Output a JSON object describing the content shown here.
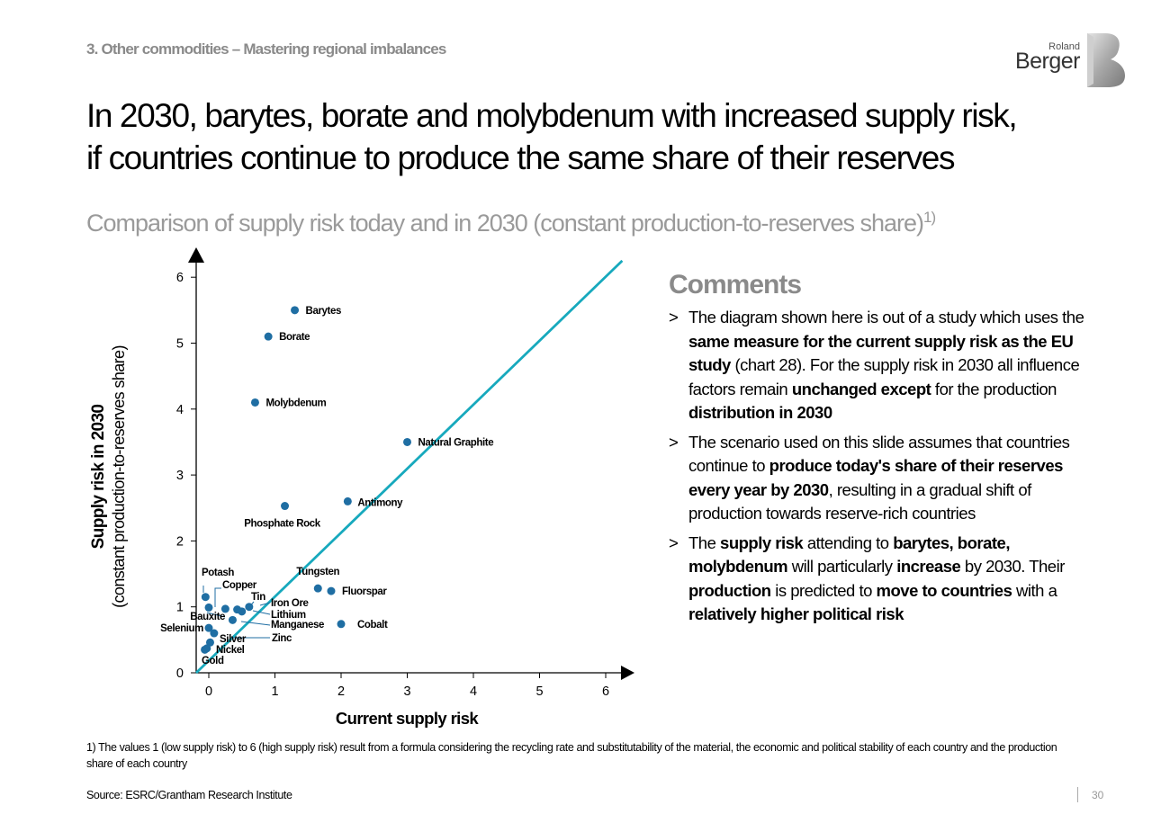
{
  "header": {
    "section": "3. Other commodities – Mastering regional imbalances",
    "logo_line1": "Roland",
    "logo_line2": "Berger"
  },
  "title_line1": "In 2030, barytes, borate and molybdenum with increased supply risk,",
  "title_line2": "if countries continue to produce the same share of their reserves",
  "subtitle": "Comparison of supply risk today and in 2030 (constant production-to-reserves share)",
  "subtitle_sup": "1)",
  "chart_data": {
    "type": "scatter",
    "xlabel": "Current supply risk",
    "ylabel_line1": "Supply risk in 2030",
    "ylabel_line2": "(constant production-to-reserves share)",
    "xlim": [
      -0.2,
      6.4
    ],
    "ylim": [
      0,
      6.4
    ],
    "x_ticks": [
      0,
      1,
      2,
      3,
      4,
      5,
      6
    ],
    "y_ticks": [
      0,
      1,
      2,
      3,
      4,
      5,
      6
    ],
    "diagonal": "y = x",
    "accent_color": "#17a9bd",
    "point_color": "#1f6ea3",
    "points": [
      {
        "name": "Barytes",
        "x": 1.3,
        "y": 5.5
      },
      {
        "name": "Borate",
        "x": 0.9,
        "y": 5.1
      },
      {
        "name": "Molybdenum",
        "x": 0.7,
        "y": 4.1
      },
      {
        "name": "Natural Graphite",
        "x": 3.0,
        "y": 3.5
      },
      {
        "name": "Antimony",
        "x": 2.1,
        "y": 2.6
      },
      {
        "name": "Phosphate Rock",
        "x": 1.15,
        "y": 2.53
      },
      {
        "name": "Tungsten",
        "x": 1.65,
        "y": 1.28
      },
      {
        "name": "Fluorspar",
        "x": 1.85,
        "y": 1.24
      },
      {
        "name": "Cobalt",
        "x": 2.0,
        "y": 0.74
      },
      {
        "name": "Potash",
        "x": -0.05,
        "y": 1.15
      },
      {
        "name": "Copper",
        "x": 0.25,
        "y": 0.97
      },
      {
        "name": "Tin",
        "x": 0.43,
        "y": 0.96
      },
      {
        "name": "Iron Ore",
        "x": 0.61,
        "y": 1.0
      },
      {
        "name": "Lithium",
        "x": 0.5,
        "y": 0.93
      },
      {
        "name": "Bauxite",
        "x": 0.0,
        "y": 0.99
      },
      {
        "name": "Manganese",
        "x": 0.36,
        "y": 0.8
      },
      {
        "name": "Selenium",
        "x": 0.0,
        "y": 0.68
      },
      {
        "name": "Zinc",
        "x": 0.08,
        "y": 0.6
      },
      {
        "name": "Silver",
        "x": 0.02,
        "y": 0.46
      },
      {
        "name": "Nickel",
        "x": -0.03,
        "y": 0.37
      },
      {
        "name": "Gold",
        "x": -0.06,
        "y": 0.35
      }
    ]
  },
  "comments": {
    "heading": "Comments",
    "items": [
      [
        {
          "t": "The diagram shown here is out of a study which uses the "
        },
        {
          "t": "same measure for the current supply risk as the EU study",
          "b": true
        },
        {
          "t": " (chart 28). For the supply risk in 2030 all influence factors remain "
        },
        {
          "t": "unchanged except",
          "b": true
        },
        {
          "t": " for the production "
        },
        {
          "t": "distribution in 2030",
          "b": true
        }
      ],
      [
        {
          "t": "The scenario used on this slide assumes that countries continue to "
        },
        {
          "t": "produce today's share of their reserves every year by 2030",
          "b": true
        },
        {
          "t": ", resulting in a gradual shift of production towards reserve-rich countries"
        }
      ],
      [
        {
          "t": "The "
        },
        {
          "t": "supply risk",
          "b": true
        },
        {
          "t": " attending to "
        },
        {
          "t": "barytes, borate, molybdenum",
          "b": true
        },
        {
          "t": " will particularly "
        },
        {
          "t": "increase",
          "b": true
        },
        {
          "t": " by 2030. Their "
        },
        {
          "t": "production",
          "b": true
        },
        {
          "t": " is predicted to "
        },
        {
          "t": "move to countries",
          "b": true
        },
        {
          "t": " with a "
        },
        {
          "t": "relatively higher political risk",
          "b": true
        }
      ]
    ]
  },
  "footnote": "1) The values 1 (low supply risk) to 6 (high supply risk) result from a formula considering the recycling rate and substitutability of the material, the economic and political stability of each country and the production share of each country",
  "source": "Source: ESRC/Grantham Research Institute",
  "page_number": "30"
}
